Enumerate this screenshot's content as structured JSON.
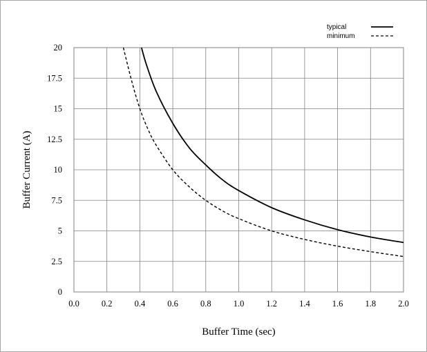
{
  "chart_data": {
    "type": "line",
    "title": "",
    "xlabel": "Buffer Time (sec)",
    "ylabel": "Buffer  Current  (A)",
    "xlim": [
      0.0,
      2.0
    ],
    "ylim": [
      0,
      20
    ],
    "x_ticks": [
      "0.0",
      "0.2",
      "0.4",
      "0.6",
      "0.8",
      "1.0",
      "1.2",
      "1.4",
      "1.6",
      "1.8",
      "2.0"
    ],
    "y_ticks": [
      "0",
      "2.5",
      "5",
      "7.5",
      "10",
      "12.5",
      "15",
      "17.5",
      "20"
    ],
    "grid": true,
    "legend_position": "top-right",
    "series": [
      {
        "name": "typical",
        "style": "solid",
        "x": [
          0.41,
          0.44,
          0.5,
          0.6,
          0.7,
          0.8,
          0.9,
          1.0,
          1.2,
          1.4,
          1.6,
          1.8,
          2.0
        ],
        "y": [
          20.0,
          18.6,
          16.4,
          13.8,
          11.8,
          10.4,
          9.2,
          8.3,
          6.9,
          5.9,
          5.1,
          4.5,
          4.05
        ]
      },
      {
        "name": "minimum",
        "style": "dashed",
        "x": [
          0.3,
          0.35,
          0.4,
          0.45,
          0.5,
          0.6,
          0.7,
          0.8,
          0.9,
          1.0,
          1.2,
          1.4,
          1.6,
          1.8,
          2.0
        ],
        "y": [
          20.0,
          17.3,
          15.0,
          13.3,
          12.0,
          10.0,
          8.6,
          7.5,
          6.65,
          6.0,
          5.0,
          4.3,
          3.75,
          3.3,
          2.9
        ]
      }
    ]
  }
}
